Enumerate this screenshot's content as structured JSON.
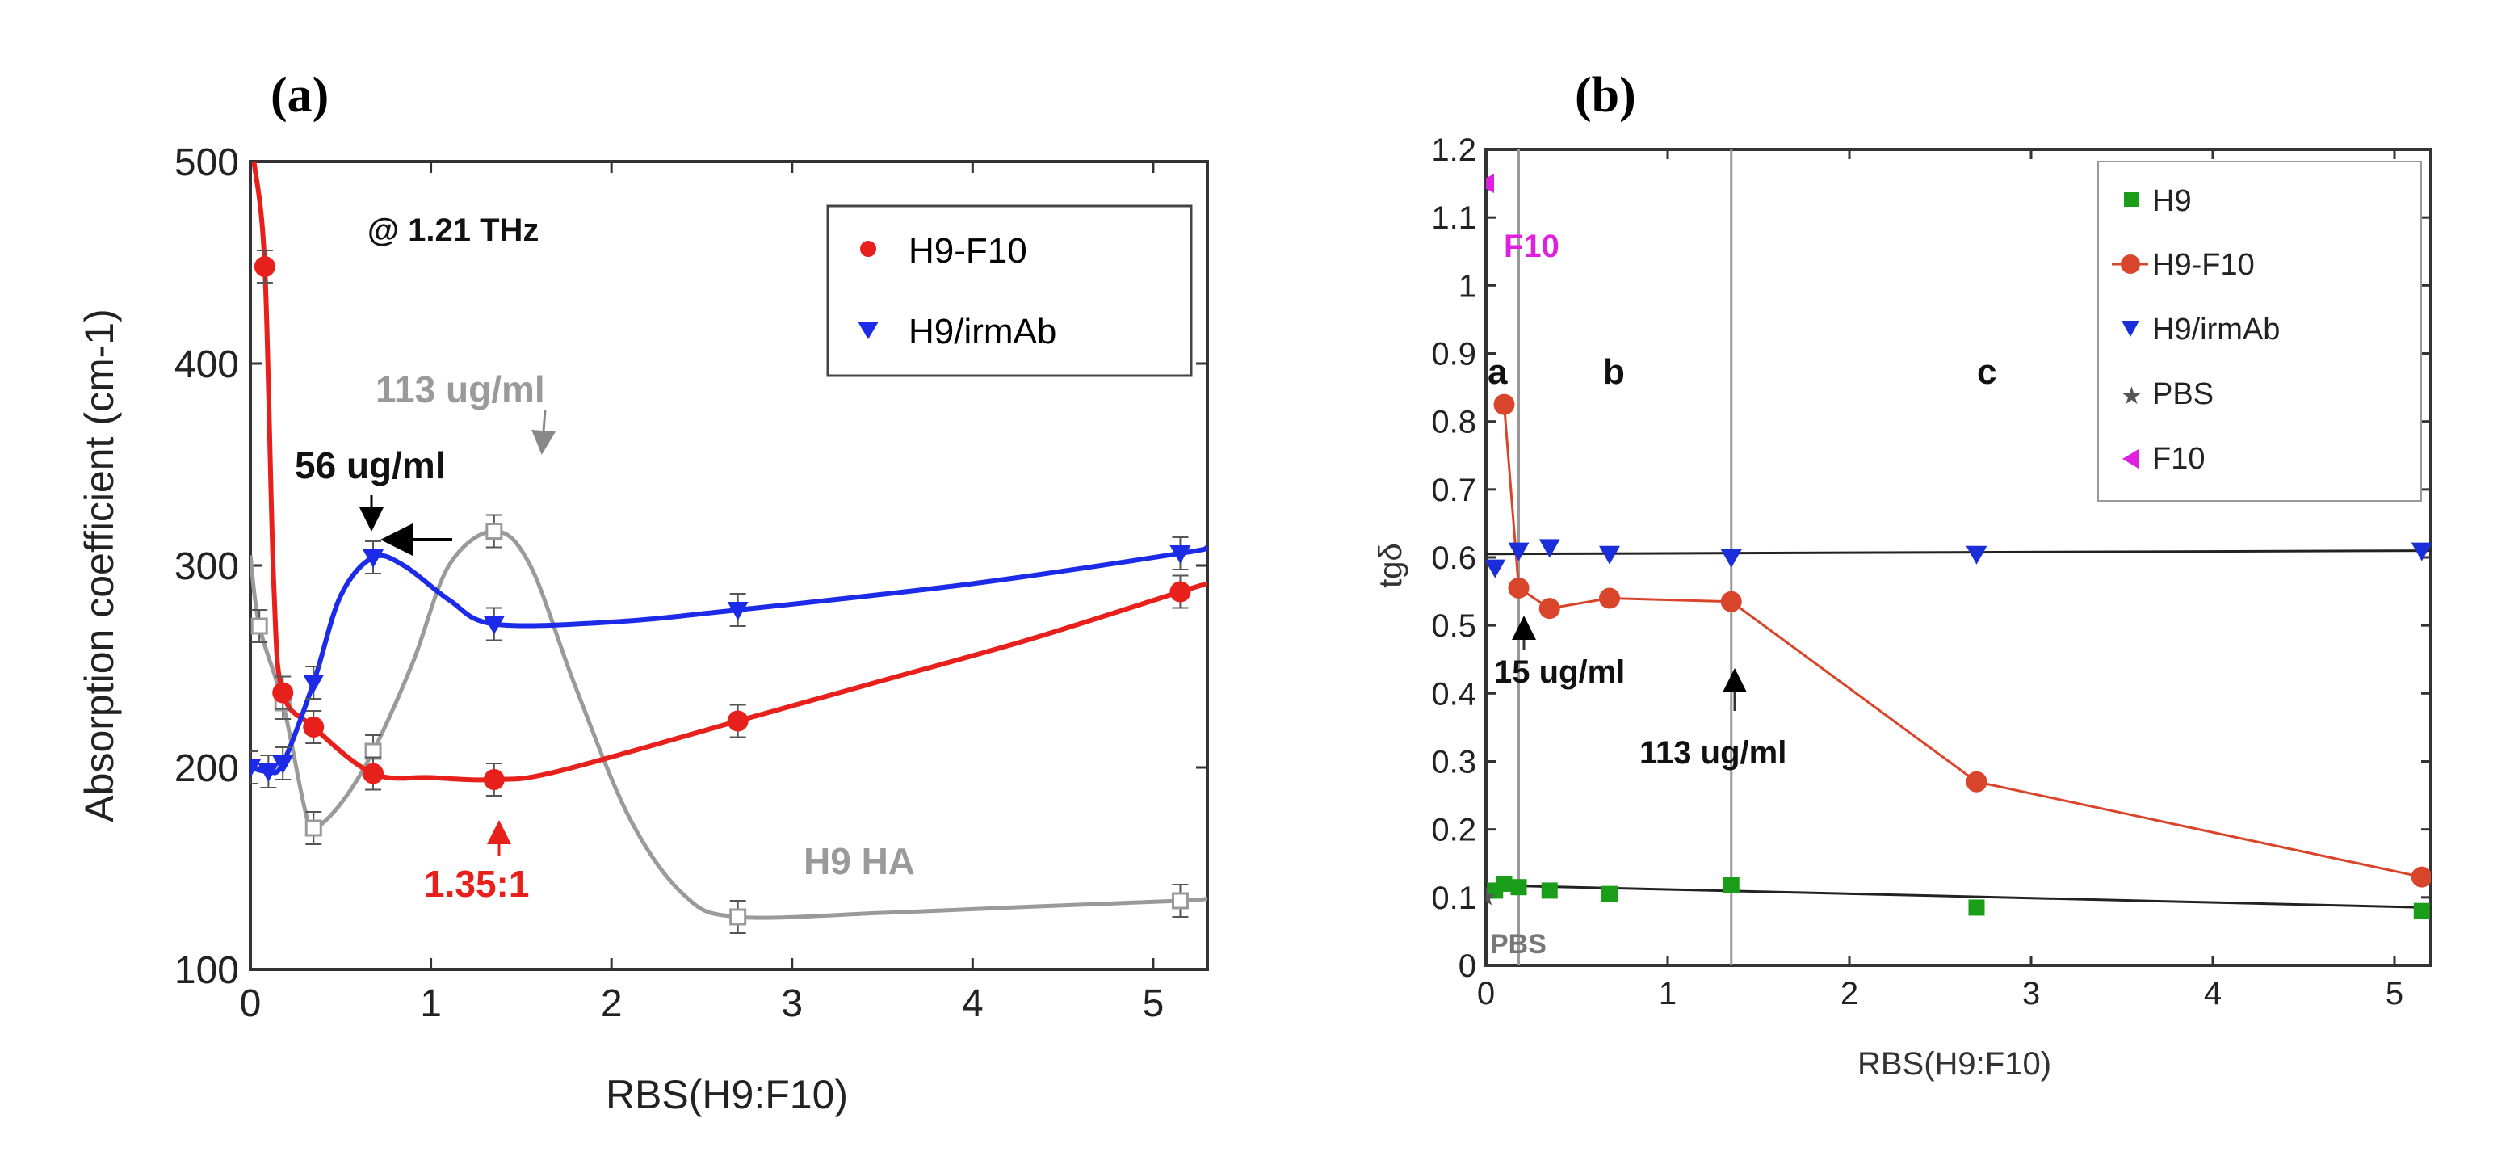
{
  "chart_data": [
    {
      "panel": "(a)",
      "type": "line",
      "xlabel": "RBS(H9:F10)",
      "ylabel": "Absorption coefficient (cm-1)",
      "xlim": [
        0,
        5.3
      ],
      "ylim": [
        100,
        500
      ],
      "xticks": [
        0,
        1,
        2,
        3,
        4,
        5
      ],
      "yticks": [
        100,
        200,
        300,
        400,
        500
      ],
      "series": [
        {
          "name": "H9-F10",
          "color": "#e8201c",
          "marker": "circle",
          "x": [
            0.08,
            0.18,
            0.35,
            0.68,
            1.35,
            2.7,
            5.15
          ],
          "y": [
            448,
            237,
            220,
            197,
            194,
            223,
            287
          ],
          "curve_x": [
            0.02,
            0.08,
            0.13,
            0.18,
            0.35,
            0.68,
            1.0,
            1.35,
            1.7,
            2.7,
            3.5,
            4.3,
            5.15,
            5.3
          ],
          "curve_y": [
            500,
            448,
            290,
            237,
            220,
            197,
            195,
            194,
            198,
            223,
            243,
            263,
            287,
            291
          ]
        },
        {
          "name": "H9/irmAb",
          "color": "#1c2be8",
          "marker": "triangle-down",
          "x": [
            0.0,
            0.1,
            0.18,
            0.35,
            0.68,
            1.35,
            2.7,
            5.15
          ],
          "y": [
            200,
            198,
            202,
            242,
            304,
            271,
            278,
            306
          ],
          "curve_x": [
            0.0,
            0.1,
            0.18,
            0.35,
            0.5,
            0.68,
            0.85,
            1.1,
            1.35,
            2.0,
            2.7,
            4.0,
            5.15,
            5.3
          ],
          "curve_y": [
            200,
            198,
            202,
            242,
            285,
            304,
            300,
            283,
            271,
            272,
            278,
            291,
            306,
            309
          ]
        },
        {
          "name": "H9 HA",
          "color": "#9a9a9a",
          "marker": "square-open",
          "x": [
            0.05,
            0.18,
            0.35,
            0.68,
            1.35,
            2.7,
            5.15
          ],
          "y": [
            270,
            232,
            170,
            208,
            317,
            126,
            134
          ],
          "curve_x": [
            0.0,
            0.05,
            0.18,
            0.3,
            0.35,
            0.5,
            0.68,
            0.9,
            1.1,
            1.35,
            1.55,
            1.8,
            2.1,
            2.4,
            2.7,
            3.5,
            4.3,
            5.15,
            5.3
          ],
          "curve_y": [
            305,
            270,
            232,
            180,
            170,
            182,
            208,
            252,
            300,
            317,
            300,
            240,
            175,
            137,
            126,
            128,
            131,
            134,
            135
          ]
        }
      ],
      "annotations": {
        "frequency": "@ 1.21 THz",
        "conc_56": "56 ug/ml",
        "conc_113": "113 ug/ml",
        "ratio": "1.35:1",
        "ha_label": "H9 HA"
      }
    },
    {
      "panel": "(b)",
      "type": "line",
      "xlabel": "RBS(H9:F10)",
      "ylabel": "tgδ",
      "xlim": [
        0,
        5.2
      ],
      "ylim": [
        0,
        1.2
      ],
      "xticks": [
        0,
        1,
        2,
        3,
        4,
        5
      ],
      "yticks": [
        0,
        0.1,
        0.2,
        0.3,
        0.4,
        0.5,
        0.6,
        0.7,
        0.8,
        0.9,
        1,
        1.1,
        1.2
      ],
      "ytick_labels": [
        "0",
        "0.1",
        "0.2",
        "0.3",
        "0.4",
        "0.5",
        "0.6",
        "0.7",
        "0.8",
        "0.9",
        "1",
        "1.1",
        "1.2"
      ],
      "series": [
        {
          "name": "H9",
          "color": "#1a9e1a",
          "marker": "square",
          "x": [
            0.05,
            0.1,
            0.18,
            0.35,
            0.68,
            1.35,
            2.7,
            5.15
          ],
          "y": [
            0.11,
            0.12,
            0.115,
            0.11,
            0.105,
            0.118,
            0.085,
            0.08
          ],
          "fit_x": [
            0,
            5.2
          ],
          "fit_y": [
            0.118,
            0.085
          ]
        },
        {
          "name": "H9-F10",
          "color": "#d9452a",
          "marker": "circle",
          "x": [
            0.1,
            0.18,
            0.35,
            0.68,
            1.35,
            2.7,
            5.15
          ],
          "y": [
            0.825,
            0.555,
            0.525,
            0.54,
            0.535,
            0.27,
            0.13
          ]
        },
        {
          "name": "H9/irmAb",
          "color": "#1a2fd9",
          "marker": "triangle-down",
          "x": [
            0.05,
            0.18,
            0.35,
            0.68,
            1.35,
            2.7,
            5.15
          ],
          "y": [
            0.585,
            0.61,
            0.615,
            0.605,
            0.6,
            0.605,
            0.61
          ],
          "fit_x": [
            0,
            5.2
          ],
          "fit_y": [
            0.605,
            0.61
          ]
        },
        {
          "name": "PBS",
          "color": "#555555",
          "marker": "star",
          "x": [
            0.0
          ],
          "y": [
            0.1
          ]
        },
        {
          "name": "F10",
          "color": "#e020e0",
          "marker": "triangle-left",
          "x": [
            0.0
          ],
          "y": [
            1.15
          ]
        }
      ],
      "vlines": [
        0.18,
        1.35
      ],
      "annotations": {
        "region_a": "a",
        "region_b": "b",
        "region_c": "c",
        "f10_label": "F10",
        "pbs_label": "PBS",
        "conc_15": "15 ug/ml",
        "conc_113": "113 ug/ml"
      }
    }
  ]
}
